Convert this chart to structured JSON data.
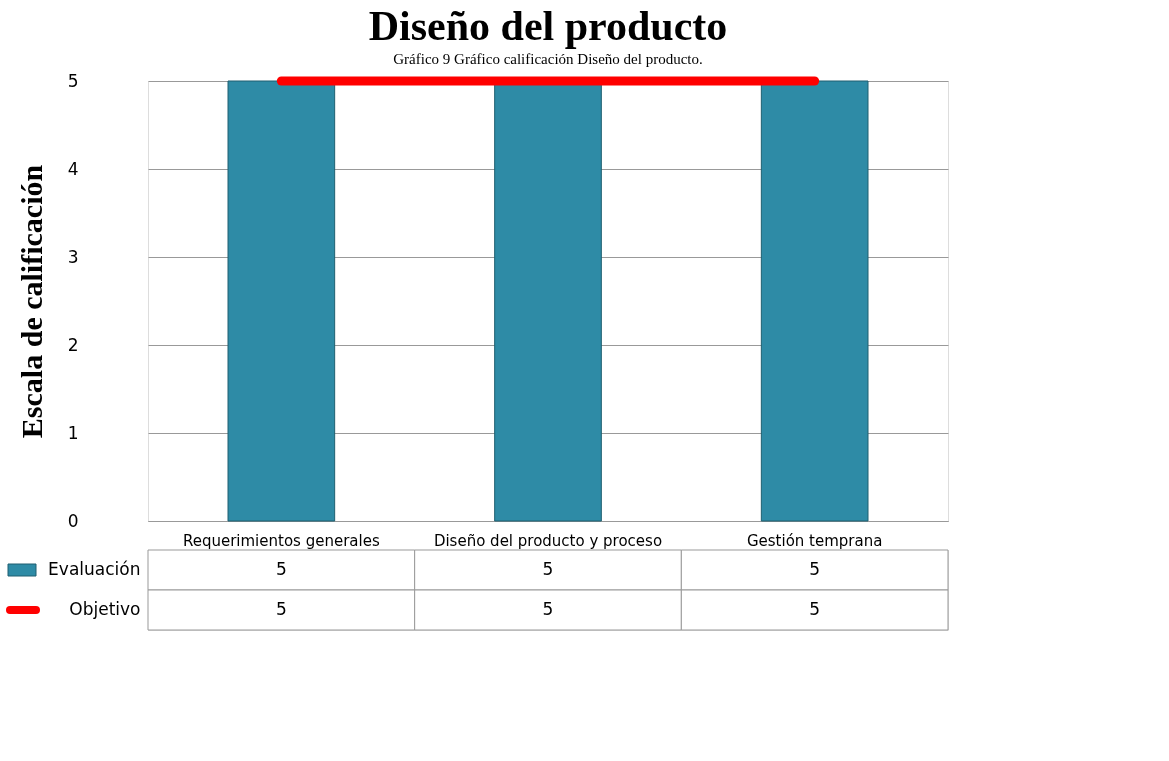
{
  "chart_data": {
    "type": "bar",
    "title": "Diseño del producto",
    "ylabel": "Escala de calificación",
    "annotations": [
      "Gráfico 9 Gráfico calificación Diseño del producto."
    ],
    "categories": [
      "Requerimientos generales",
      "Diseño del producto y proceso",
      "Gestión temprana"
    ],
    "series": [
      {
        "name": "Evaluación",
        "color": "#2e8ba6",
        "values": [
          5,
          5,
          5
        ]
      },
      {
        "name": "Objetivo",
        "type": "line",
        "color": "#ff0000",
        "values": [
          5,
          5,
          5
        ]
      }
    ],
    "ylim": [
      0,
      5
    ],
    "yticks": [
      0,
      1,
      2,
      3,
      4,
      5
    ],
    "grid": "y",
    "data_labels": true,
    "legend": "bottom"
  }
}
